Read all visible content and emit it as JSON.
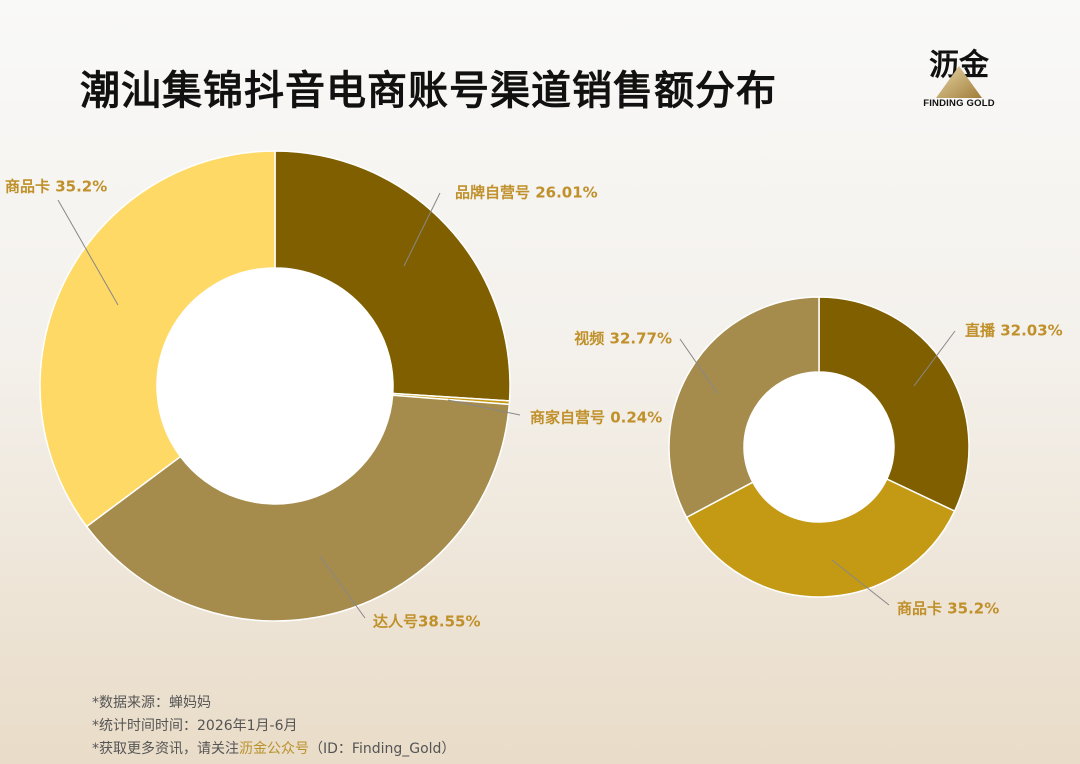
{
  "title": "潮汕集锦抖音电商账号渠道销售额分布",
  "logo": {
    "cn": "沥金",
    "en": "FINDING GOLD"
  },
  "footer": {
    "line1": "*数据来源：蝉妈妈",
    "line2": "*统计时间时间：2026年1月-6月",
    "line3_prefix": "*获取更多资讯，请关注",
    "line3_highlight": "沥金公众号",
    "line3_suffix": "（ID：Finding_Gold）"
  },
  "chart_data": [
    {
      "type": "pie",
      "slices": [
        {
          "label": "品牌自营号",
          "value": 26.01,
          "label_text": "品牌自营号 26.01%",
          "color": "#7f5f00"
        },
        {
          "label": "商家自营号",
          "value": 0.24,
          "label_text": "商家自营号 0.24%",
          "color": "#c49a14"
        },
        {
          "label": "达人号",
          "value": 38.55,
          "label_text": "达人号38.55%",
          "color": "#a68c4c"
        },
        {
          "label": "商品卡",
          "value": 35.2,
          "label_text": "商品卡 35.2%",
          "color": "#ffd966"
        }
      ]
    },
    {
      "type": "pie",
      "slices": [
        {
          "label": "直播",
          "value": 32.03,
          "label_text": "直播 32.03%",
          "color": "#7f5f00"
        },
        {
          "label": "商品卡",
          "value": 35.2,
          "label_text": "商品卡 35.2%",
          "color": "#c49a14"
        },
        {
          "label": "视频",
          "value": 32.77,
          "label_text": "视频 32.77%",
          "color": "#a68c4c"
        }
      ]
    }
  ],
  "colors": {
    "label_text": "#c0902a",
    "leader_line": "#888888"
  }
}
